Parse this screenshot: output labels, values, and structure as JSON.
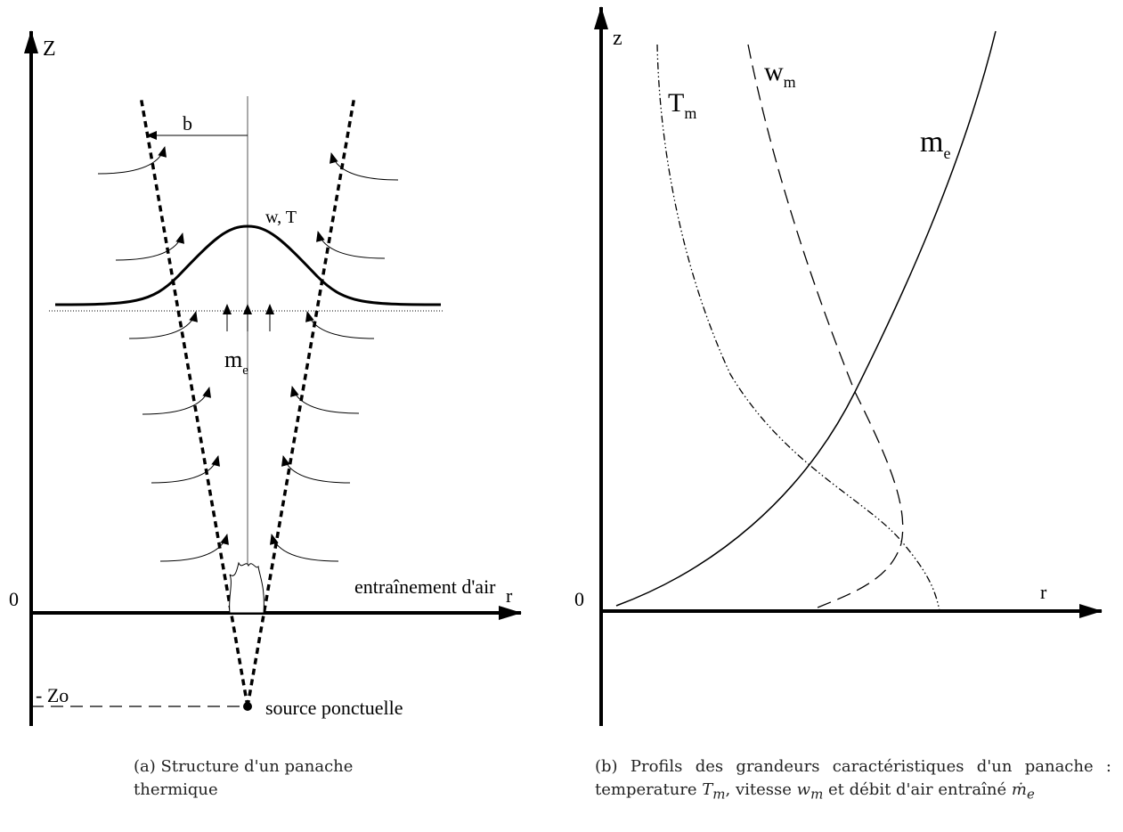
{
  "panel_a": {
    "labels": {
      "z_axis": "Z",
      "b": "b",
      "w_t": "w, T",
      "me_main": "m",
      "me_sub": "e",
      "origin": "0",
      "entrainment": "entraînement d'air",
      "r_axis": "r",
      "zo": "- Zo",
      "source": "source ponctuelle"
    },
    "caption": "(a) Structure d'un panache thermique"
  },
  "panel_b": {
    "labels": {
      "z_axis": "z",
      "tm_main": "T",
      "tm_sub": "m",
      "wm_main": "w",
      "wm_sub": "m",
      "me_main": "m",
      "me_sub": "e",
      "origin": "0",
      "r_axis": "r"
    },
    "caption": [
      "(b) Profils des grandeurs caractéristiques d'un panache : temperature ",
      "T",
      "m",
      ", vitesse ",
      "w",
      "m",
      " et débit d'air entraîné ",
      "ṁ",
      "e"
    ]
  }
}
